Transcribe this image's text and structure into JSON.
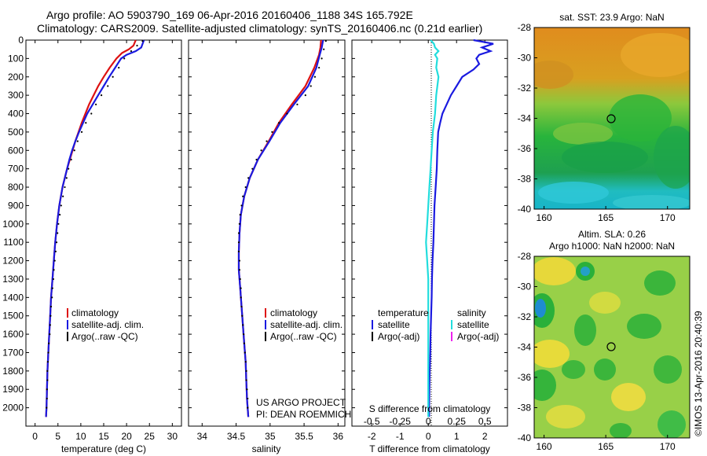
{
  "header": {
    "title_line1": "Argo profile: AO 5903790_169 06-Apr-2016 20160406_1188 34S 165.792E",
    "title_line2": "Climatology: CARS2009. Satellite-adjusted climatology: synTS_20160406.nc (0.21d earlier)"
  },
  "credits": {
    "project": "US ARGO PROJECT",
    "pi": "PI: DEAN ROEMMICH"
  },
  "watermark": "©IMOS 13-Apr-2016 20:40:39",
  "colors": {
    "climatology": "#dd1111",
    "satellite": "#1a1ae0",
    "argo": "#000000",
    "salinity_satellite": "#22dddd",
    "salinity_argo": "#ee22ee"
  },
  "depth_axis": {
    "ylim": [
      2100,
      0
    ],
    "ticks": [
      "0",
      "100",
      "200",
      "300",
      "400",
      "500",
      "600",
      "700",
      "800",
      "900",
      "1000",
      "1100",
      "1200",
      "1300",
      "1400",
      "1500",
      "1600",
      "1700",
      "1800",
      "1900",
      "2000"
    ]
  },
  "chart_data": [
    {
      "type": "line",
      "id": "temperature-profile",
      "xlabel": "temperature (deg C)",
      "xlim": [
        -2,
        32
      ],
      "xticks": [
        "0",
        "5",
        "10",
        "15",
        "20",
        "25",
        "30"
      ],
      "legend": [
        "climatology",
        "satellite-adj. clim.",
        "Argo(..raw -QC)"
      ],
      "series": [
        {
          "name": "climatology",
          "color": "#dd1111",
          "depth": [
            0,
            30,
            50,
            70,
            100,
            150,
            200,
            250,
            300,
            350,
            400,
            450,
            500,
            550,
            600,
            650,
            700,
            800,
            900,
            1000,
            1100,
            1200,
            1300,
            1400,
            1500,
            1600,
            1700,
            1800,
            1900,
            2000,
            2050
          ],
          "values": [
            22.0,
            21.5,
            20.5,
            19.0,
            17.8,
            16.3,
            15.0,
            13.8,
            12.8,
            11.8,
            11.0,
            10.2,
            9.5,
            8.8,
            8.2,
            7.6,
            7.0,
            6.0,
            5.3,
            4.8,
            4.4,
            4.1,
            3.8,
            3.5,
            3.3,
            3.1,
            2.9,
            2.7,
            2.6,
            2.5,
            2.4
          ]
        },
        {
          "name": "satellite-adj. clim.",
          "color": "#1a1ae0",
          "depth": [
            0,
            20,
            40,
            60,
            80,
            100,
            150,
            200,
            250,
            300,
            350,
            400,
            450,
            500,
            550,
            600,
            650,
            700,
            800,
            900,
            1000,
            1100,
            1200,
            1300,
            1400,
            1500,
            1600,
            1700,
            1800,
            1900,
            2000,
            2050
          ],
          "values": [
            23.8,
            23.5,
            23.2,
            22.0,
            20.0,
            18.8,
            17.5,
            16.2,
            15.0,
            13.8,
            12.6,
            11.4,
            10.5,
            9.6,
            8.8,
            8.1,
            7.5,
            7.0,
            6.0,
            5.3,
            4.8,
            4.4,
            4.1,
            3.8,
            3.5,
            3.3,
            3.1,
            2.9,
            2.7,
            2.6,
            2.5,
            2.4
          ]
        },
        {
          "name": "Argo(..raw -QC)",
          "color": "#000000",
          "style": "dots",
          "depth": [
            5,
            30,
            60,
            100,
            150,
            200,
            250,
            300,
            350,
            400,
            450,
            500,
            550,
            600,
            650,
            700,
            750,
            800,
            850,
            900,
            950,
            1000,
            1050,
            1100,
            1150,
            1200,
            1250,
            1300,
            1350,
            1400,
            1450,
            1500,
            1550,
            1600,
            1650,
            1700,
            1750,
            1800,
            1850,
            1900,
            1950,
            2000
          ],
          "values": [
            23.5,
            22.3,
            21.0,
            19.5,
            18.3,
            17.0,
            15.9,
            14.5,
            13.3,
            12.3,
            11.1,
            10.2,
            9.3,
            8.6,
            7.9,
            7.3,
            6.9,
            6.5,
            6.1,
            5.7,
            5.4,
            5.1,
            4.9,
            4.7,
            4.5,
            4.3,
            4.1,
            4.0,
            3.8,
            3.7,
            3.5,
            3.4,
            3.3,
            3.2,
            3.0,
            2.9,
            2.8,
            2.7,
            2.7,
            2.6,
            2.6,
            2.5
          ]
        }
      ]
    },
    {
      "type": "line",
      "id": "salinity-profile",
      "xlabel": "salinity",
      "xlim": [
        33.8,
        36.1
      ],
      "xticks": [
        "34",
        "34.5",
        "35",
        "35.5",
        "36"
      ],
      "legend": [
        "climatology",
        "satellite-adj. clim.",
        "Argo(..raw -QC)"
      ],
      "series": [
        {
          "name": "climatology",
          "color": "#dd1111",
          "depth": [
            0,
            40,
            80,
            150,
            250,
            350,
            450,
            550,
            650,
            750,
            850,
            950,
            1050,
            1150,
            1250,
            1350,
            1450,
            1550,
            1650,
            1750,
            1850,
            1950,
            2050
          ],
          "values": [
            35.75,
            35.74,
            35.72,
            35.65,
            35.52,
            35.32,
            35.13,
            34.98,
            34.82,
            34.7,
            34.62,
            34.57,
            34.55,
            34.54,
            34.54,
            34.56,
            34.58,
            34.6,
            34.62,
            34.64,
            34.65,
            34.66,
            34.68
          ]
        },
        {
          "name": "satellite-adj. clim.",
          "color": "#1a1ae0",
          "depth": [
            0,
            40,
            80,
            150,
            250,
            350,
            450,
            550,
            650,
            750,
            850,
            950,
            1050,
            1150,
            1250,
            1350,
            1450,
            1550,
            1650,
            1750,
            1850,
            1950,
            2050
          ],
          "values": [
            35.78,
            35.76,
            35.73,
            35.68,
            35.56,
            35.35,
            35.15,
            34.99,
            34.82,
            34.7,
            34.62,
            34.57,
            34.55,
            34.54,
            34.54,
            34.56,
            34.58,
            34.6,
            34.62,
            34.64,
            34.65,
            34.66,
            34.68
          ]
        },
        {
          "name": "Argo(..raw -QC)",
          "color": "#000000",
          "style": "dots",
          "depth": [
            5,
            50,
            100,
            150,
            200,
            250,
            300,
            350,
            400,
            450,
            500,
            550,
            600,
            650,
            700,
            750,
            800,
            850,
            900,
            950,
            1000,
            1050,
            1100,
            1150,
            1200,
            1250,
            1300,
            1350,
            1400,
            1450,
            1500,
            1550,
            1600,
            1650,
            1700,
            1750,
            1800,
            1850,
            1900,
            1950,
            2000
          ],
          "values": [
            35.82,
            35.79,
            35.76,
            35.72,
            35.66,
            35.6,
            35.52,
            35.4,
            35.25,
            35.13,
            35.03,
            34.95,
            34.87,
            34.8,
            34.74,
            34.68,
            34.64,
            34.6,
            34.58,
            34.56,
            34.55,
            34.54,
            34.54,
            34.54,
            34.55,
            34.55,
            34.56,
            34.57,
            34.57,
            34.58,
            34.59,
            34.6,
            34.61,
            34.62,
            34.63,
            34.64,
            34.65,
            34.65,
            34.66,
            34.67,
            34.67
          ]
        }
      ]
    },
    {
      "type": "line",
      "id": "difference-profile",
      "xlabel_bottom": "T difference from climatology",
      "xlabel_top": "S difference from climatology",
      "xlim": [
        -2.7,
        2.8
      ],
      "xticks_bottom": [
        "-2",
        "-1",
        "0",
        "1",
        "2"
      ],
      "xticks_top": [
        "-0.5",
        "-0.25",
        "0",
        "0.25",
        "0.5"
      ],
      "legend_temperature": {
        "heading": "temperature",
        "items": [
          "satellite",
          "Argo(-adj)"
        ]
      },
      "legend_salinity": {
        "heading": "salinity",
        "items": [
          "satellite",
          "Argo(-adj)"
        ]
      },
      "series": [
        {
          "name": "temperature satellite",
          "color": "#1a1ae0",
          "depth": [
            0,
            20,
            40,
            60,
            80,
            100,
            130,
            160,
            200,
            250,
            300,
            350,
            400,
            450,
            500,
            600,
            700,
            800,
            900,
            1000,
            1100,
            1200,
            1300,
            1400,
            1500,
            1600,
            1700,
            1800,
            1900,
            2000,
            2050
          ],
          "values": [
            1.6,
            2.3,
            1.9,
            2.2,
            1.8,
            1.7,
            1.8,
            1.6,
            1.2,
            1.0,
            0.8,
            0.65,
            0.5,
            0.42,
            0.35,
            0.32,
            0.3,
            0.26,
            0.22,
            0.2,
            0.18,
            0.15,
            0.13,
            0.12,
            0.1,
            0.08,
            0.07,
            0.05,
            0.04,
            0.03,
            0.03
          ]
        },
        {
          "name": "salinity satellite",
          "color": "#22dddd",
          "depth": [
            0,
            20,
            40,
            60,
            80,
            100,
            150,
            200,
            300,
            400,
            500,
            600,
            700,
            800,
            900,
            1000,
            1100,
            1200,
            1300,
            1400,
            1500,
            1600,
            1700,
            1800,
            1900,
            2000,
            2050
          ],
          "values": [
            0.02,
            0.05,
            0.06,
            0.09,
            0.06,
            0.08,
            0.07,
            0.09,
            0.07,
            0.06,
            0.04,
            0.03,
            0.02,
            0.01,
            0.0,
            -0.01,
            -0.02,
            -0.01,
            0.0,
            0.0,
            0.0,
            0.0,
            0.0,
            0.0,
            0.0,
            0.0,
            0.0
          ]
        }
      ]
    }
  ],
  "maps": [
    {
      "id": "sst-map",
      "title": "sat. SST: 23.9 Argo: NaN",
      "xticks": [
        "160",
        "165",
        "170"
      ],
      "yticks": [
        "-28",
        "-30",
        "-32",
        "-34",
        "-36",
        "-38",
        "-40"
      ],
      "lon": [
        159.2,
        171.8
      ],
      "lat": [
        -40,
        -28
      ],
      "profile_marker": {
        "lon": 165.8,
        "lat": -34
      }
    },
    {
      "id": "sla-map",
      "title": "Altim. SLA: 0.26",
      "subtitle": "Argo h1000: NaN h2000: NaN",
      "xticks": [
        "160",
        "165",
        "170"
      ],
      "yticks": [
        "-28",
        "-30",
        "-32",
        "-34",
        "-36",
        "-38",
        "-40"
      ],
      "lon": [
        159.2,
        171.8
      ],
      "lat": [
        -40,
        -28
      ],
      "profile_marker": {
        "lon": 165.8,
        "lat": -34
      }
    }
  ]
}
